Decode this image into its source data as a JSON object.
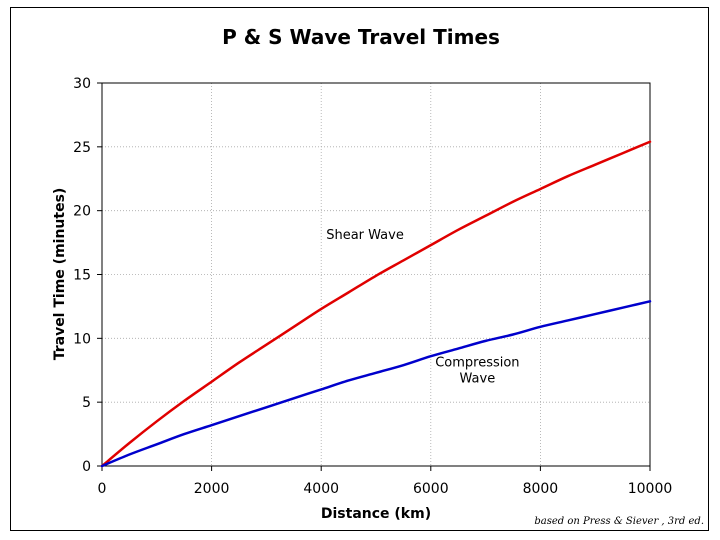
{
  "chart_data": {
    "type": "line",
    "title": "P & S Wave Travel Times",
    "xlabel": "Distance (km)",
    "ylabel": "Travel Time (minutes)",
    "xlim": [
      0,
      10000
    ],
    "ylim": [
      0,
      30
    ],
    "x_ticks": [
      0,
      2000,
      4000,
      6000,
      8000,
      10000
    ],
    "y_ticks": [
      0,
      5,
      10,
      15,
      20,
      25,
      30
    ],
    "x_tick_labels": [
      "0",
      "2000",
      "4000",
      "6000",
      "8000",
      "10000"
    ],
    "y_tick_labels": [
      "0",
      "5",
      "10",
      "15",
      "20",
      "25",
      "30"
    ],
    "grid": true,
    "series": [
      {
        "name": "Shear Wave",
        "color": "#e00000",
        "x": [
          0,
          500,
          1000,
          1500,
          2000,
          2500,
          3000,
          3500,
          4000,
          4500,
          5000,
          5500,
          6000,
          6500,
          7000,
          7500,
          8000,
          8500,
          9000,
          9500,
          10000
        ],
        "y": [
          0,
          1.8,
          3.5,
          5.1,
          6.6,
          8.1,
          9.5,
          10.9,
          12.3,
          13.6,
          14.9,
          16.1,
          17.3,
          18.5,
          19.6,
          20.7,
          21.7,
          22.7,
          23.6,
          24.5,
          25.4
        ]
      },
      {
        "name": "Compression Wave",
        "color": "#0000cc",
        "x": [
          0,
          500,
          1000,
          1500,
          2000,
          2500,
          3000,
          3500,
          4000,
          4500,
          5000,
          5500,
          6000,
          6500,
          7000,
          7500,
          8000,
          8500,
          9000,
          9500,
          10000
        ],
        "y": [
          0,
          0.9,
          1.7,
          2.5,
          3.2,
          3.9,
          4.6,
          5.3,
          6.0,
          6.7,
          7.3,
          7.9,
          8.6,
          9.2,
          9.8,
          10.3,
          10.9,
          11.4,
          11.9,
          12.4,
          12.9
        ]
      }
    ],
    "annotations": [
      {
        "lines": [
          "Shear Wave"
        ],
        "x": 4800,
        "y": 17.8,
        "align": "middle"
      },
      {
        "lines": [
          "Compression",
          "Wave"
        ],
        "x": 6850,
        "y": 7.8,
        "align": "middle"
      }
    ],
    "credit": "based on Press & Siever , 3rd ed."
  }
}
